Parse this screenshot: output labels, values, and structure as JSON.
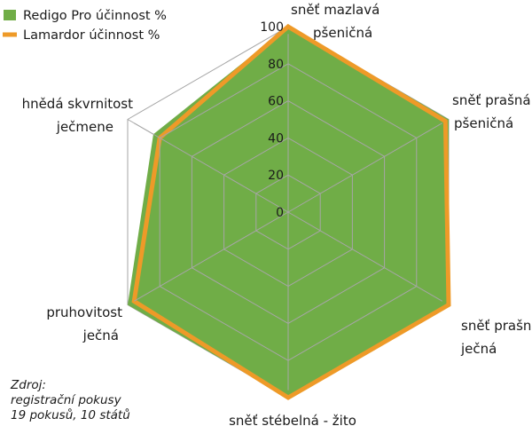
{
  "chart_data": {
    "type": "radar",
    "categories": [
      [
        "sněť mazlavá",
        "pšeničná"
      ],
      [
        "sněť prašná",
        "pšeničná"
      ],
      [
        "sněť prašná",
        "ječná"
      ],
      [
        "sněť stébelná - žito"
      ],
      [
        "pruhovitost",
        "ječná"
      ],
      [
        "hnědá skvrnitost",
        "ječmene"
      ]
    ],
    "series": [
      {
        "name": "Redigo Pro účinnost %",
        "values": [
          100,
          100,
          100,
          100,
          100,
          84
        ],
        "color": "#70ad47"
      },
      {
        "name": "Lamardor účinnost %",
        "values": [
          100,
          98,
          100,
          100,
          96,
          80
        ],
        "color": "#ee9a28"
      }
    ],
    "rlim": [
      0,
      100
    ],
    "ticks": [
      0,
      20,
      40,
      60,
      80,
      100
    ],
    "tick_labels": [
      "0",
      "20",
      "40",
      "60",
      "80",
      "100"
    ],
    "grid": true,
    "legend": "top-left"
  },
  "source": {
    "lines": [
      "Zdroj:",
      "registrační pokusy",
      "19 pokusů, 10 států"
    ]
  }
}
